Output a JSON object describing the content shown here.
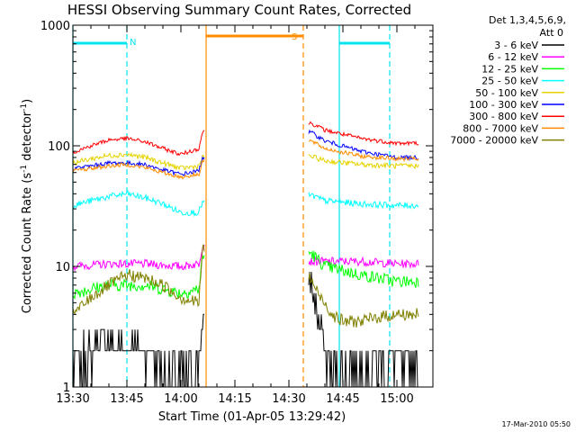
{
  "chart_data": {
    "type": "line",
    "title": "HESSI Observing Summary Count Rates, Corrected",
    "xlabel": "Start Time (01-Apr-05 13:29:42)",
    "ylabel_main": "Corrected Count Rate (s",
    "ylabel_sup1": "-1",
    "ylabel_mid": " detector",
    "ylabel_sup2": "-1",
    "ylabel_end": ")",
    "yscale": "log",
    "ylim": [
      1,
      1000
    ],
    "xlim_minutes": [
      0,
      100
    ],
    "xtick_labels": [
      "13:30",
      "13:45",
      "14:00",
      "14:15",
      "14:30",
      "14:45",
      "15:00"
    ],
    "xtick_minutes": [
      0,
      15,
      30,
      45,
      60,
      75,
      90
    ],
    "ytick_labels": [
      "1",
      "10",
      "100",
      "1000"
    ],
    "ytick_values": [
      1,
      10,
      100,
      1000
    ],
    "legend_header_1": "Det 1,3,4,5,6,9,",
    "legend_header_2": "Att 0",
    "footer_date": "17-Mar-2010 05:50",
    "flags": [
      {
        "label": "N",
        "color": "#00e5ee",
        "solid_starts": [
          0,
          74
        ],
        "solid_ends": [
          15,
          88
        ]
      },
      {
        "label": "S",
        "color": "#ff8c00",
        "solid_starts": [
          37
        ],
        "solid_ends": [
          64
        ]
      }
    ],
    "gap_minutes": [
      37,
      64
    ],
    "series": [
      {
        "name": "3 - 6 keV",
        "color": "#000000",
        "x": [
          0,
          5,
          10,
          15,
          20,
          25,
          30,
          35,
          36,
          66,
          68,
          70,
          72,
          74,
          76,
          78,
          80,
          85,
          90
        ],
        "y": [
          1.5,
          2,
          2.3,
          2.3,
          2,
          1.5,
          1.3,
          1.5,
          3,
          8,
          4,
          2,
          1.5,
          1.3,
          1.4,
          1.5,
          1.5,
          1.6,
          1.5
        ]
      },
      {
        "name": "6 - 12 keV",
        "color": "#ff00ff",
        "x": [
          0,
          10,
          20,
          30,
          35,
          36,
          66,
          70,
          80,
          90
        ],
        "y": [
          10,
          10.5,
          10.5,
          10,
          10.5,
          15,
          11,
          11,
          11,
          10.5
        ]
      },
      {
        "name": "12 - 25 keV",
        "color": "#00ff00",
        "x": [
          0,
          5,
          10,
          15,
          20,
          25,
          30,
          35,
          36,
          66,
          70,
          80,
          90
        ],
        "y": [
          6,
          6.5,
          7,
          7,
          7,
          6.5,
          6,
          6.5,
          12,
          13,
          10,
          8.5,
          7.5
        ]
      },
      {
        "name": "25 - 50 keV",
        "color": "#00ffff",
        "x": [
          0,
          5,
          10,
          15,
          20,
          25,
          30,
          35,
          36,
          66,
          70,
          80,
          90
        ],
        "y": [
          32,
          35,
          38,
          40,
          37,
          33,
          28,
          28,
          34,
          39,
          35,
          33,
          32
        ]
      },
      {
        "name": "50 - 100 keV",
        "color": "#e6d300",
        "x": [
          0,
          5,
          10,
          15,
          20,
          25,
          30,
          35,
          36,
          66,
          70,
          80,
          90
        ],
        "y": [
          72,
          78,
          83,
          85,
          80,
          72,
          65,
          68,
          80,
          82,
          75,
          70,
          68
        ]
      },
      {
        "name": "100 - 300 keV",
        "color": "#0000ff",
        "x": [
          0,
          5,
          10,
          15,
          20,
          25,
          30,
          35,
          36,
          66,
          70,
          80,
          90
        ],
        "y": [
          65,
          68,
          72,
          72,
          70,
          63,
          58,
          62,
          80,
          130,
          110,
          90,
          80
        ]
      },
      {
        "name": "300 - 800 keV",
        "color": "#ff0000",
        "x": [
          0,
          5,
          10,
          15,
          20,
          25,
          30,
          35,
          36,
          66,
          70,
          80,
          90
        ],
        "y": [
          88,
          100,
          112,
          115,
          108,
          95,
          85,
          95,
          130,
          155,
          135,
          115,
          105
        ]
      },
      {
        "name": "800 - 7000 keV",
        "color": "#ff8c00",
        "x": [
          0,
          5,
          10,
          15,
          20,
          25,
          30,
          35,
          36,
          66,
          70,
          80,
          90
        ],
        "y": [
          62,
          65,
          68,
          70,
          66,
          60,
          55,
          58,
          75,
          110,
          95,
          82,
          78
        ]
      },
      {
        "name": "7000 - 20000 keV",
        "color": "#808000",
        "x": [
          0,
          5,
          10,
          15,
          20,
          25,
          30,
          35,
          36,
          66,
          68,
          70,
          72,
          75,
          80,
          85,
          90
        ],
        "y": [
          4,
          5.5,
          7,
          8.5,
          8,
          7,
          5.5,
          5,
          14,
          8,
          6,
          5,
          4,
          3.5,
          3.5,
          3.8,
          4
        ]
      }
    ]
  }
}
